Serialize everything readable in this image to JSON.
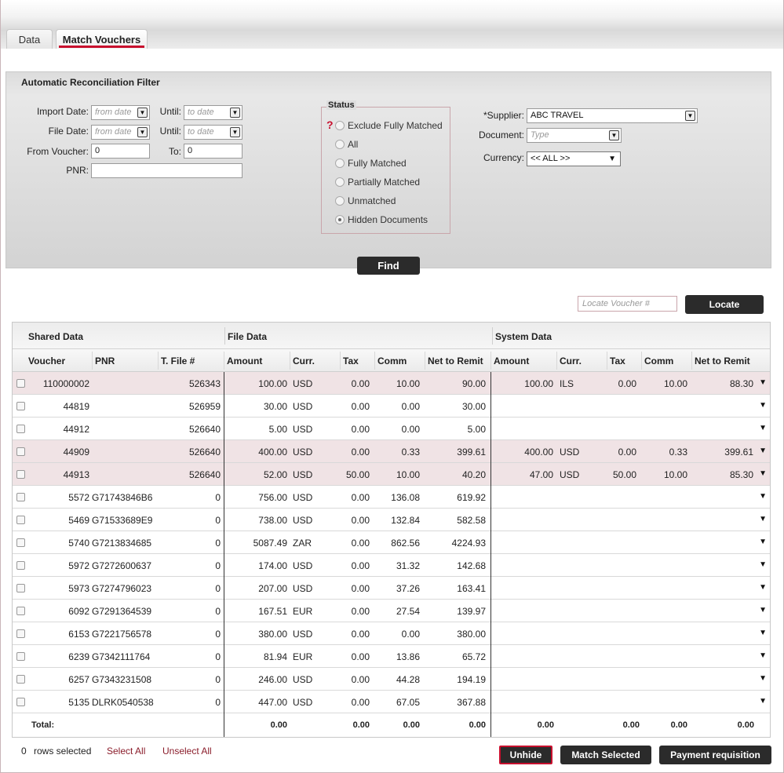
{
  "tabs": {
    "data": "Data",
    "match_vouchers": "Match Vouchers"
  },
  "filter": {
    "title": "Automatic Reconciliation Filter",
    "import_date_label": "Import Date:",
    "import_date_placeholder": "from date",
    "until_label": "Until:",
    "until_placeholder": "to date",
    "file_date_label": "File Date:",
    "file_date_placeholder": "from date",
    "from_voucher_label": "From Voucher:",
    "from_voucher_value": "0",
    "to_label": "To:",
    "to_value": "0",
    "pnr_label": "PNR:",
    "pnr_value": "",
    "status_legend": "Status",
    "status_options": [
      "Exclude Fully Matched",
      "All",
      "Fully Matched",
      "Partially Matched",
      "Unmatched",
      "Hidden Documents"
    ],
    "status_selected": "Hidden Documents",
    "supplier_label": "*Supplier:",
    "supplier_value": "ABC TRAVEL",
    "document_label": "Document:",
    "document_placeholder": "Type",
    "currency_label": "Currency:",
    "currency_value": "<< ALL >>",
    "find_label": "Find"
  },
  "locate": {
    "placeholder": "Locate Voucher #",
    "button": "Locate"
  },
  "grid": {
    "group_headers": {
      "shared": "Shared Data",
      "file": "File Data",
      "system": "System Data"
    },
    "columns": {
      "voucher": "Voucher",
      "pnr": "PNR",
      "tfile": "T. File #",
      "f_amount": "Amount",
      "f_curr": "Curr.",
      "f_tax": "Tax",
      "f_comm": "Comm",
      "f_net": "Net to Remit",
      "s_amount": "Amount",
      "s_curr": "Curr.",
      "s_tax": "Tax",
      "s_comm": "Comm",
      "s_net": "Net to Remit"
    },
    "rows": [
      {
        "voucher": "110000002",
        "pnr": "",
        "tfile": "526343",
        "f_amount": "100.00",
        "f_curr": "USD",
        "f_tax": "0.00",
        "f_comm": "10.00",
        "f_net": "90.00",
        "s_amount": "100.00",
        "s_curr": "ILS",
        "s_tax": "0.00",
        "s_comm": "10.00",
        "s_net": "88.30",
        "matched": true
      },
      {
        "voucher": "44819",
        "pnr": "",
        "tfile": "526959",
        "f_amount": "30.00",
        "f_curr": "USD",
        "f_tax": "0.00",
        "f_comm": "0.00",
        "f_net": "30.00",
        "s_amount": "",
        "s_curr": "",
        "s_tax": "",
        "s_comm": "",
        "s_net": "",
        "matched": false
      },
      {
        "voucher": "44912",
        "pnr": "",
        "tfile": "526640",
        "f_amount": "5.00",
        "f_curr": "USD",
        "f_tax": "0.00",
        "f_comm": "0.00",
        "f_net": "5.00",
        "s_amount": "",
        "s_curr": "",
        "s_tax": "",
        "s_comm": "",
        "s_net": "",
        "matched": false
      },
      {
        "voucher": "44909",
        "pnr": "",
        "tfile": "526640",
        "f_amount": "400.00",
        "f_curr": "USD",
        "f_tax": "0.00",
        "f_comm": "0.33",
        "f_net": "399.61",
        "s_amount": "400.00",
        "s_curr": "USD",
        "s_tax": "0.00",
        "s_comm": "0.33",
        "s_net": "399.61",
        "matched": true
      },
      {
        "voucher": "44913",
        "pnr": "",
        "tfile": "526640",
        "f_amount": "52.00",
        "f_curr": "USD",
        "f_tax": "50.00",
        "f_comm": "10.00",
        "f_net": "40.20",
        "s_amount": "47.00",
        "s_curr": "USD",
        "s_tax": "50.00",
        "s_comm": "10.00",
        "s_net": "85.30",
        "matched": true
      },
      {
        "voucher": "5572",
        "pnr": "G71743846B6",
        "tfile": "0",
        "f_amount": "756.00",
        "f_curr": "USD",
        "f_tax": "0.00",
        "f_comm": "136.08",
        "f_net": "619.92",
        "s_amount": "",
        "s_curr": "",
        "s_tax": "",
        "s_comm": "",
        "s_net": "",
        "matched": false
      },
      {
        "voucher": "5469",
        "pnr": "G71533689E9",
        "tfile": "0",
        "f_amount": "738.00",
        "f_curr": "USD",
        "f_tax": "0.00",
        "f_comm": "132.84",
        "f_net": "582.58",
        "s_amount": "",
        "s_curr": "",
        "s_tax": "",
        "s_comm": "",
        "s_net": "",
        "matched": false
      },
      {
        "voucher": "5740",
        "pnr": "G7213834685",
        "tfile": "0",
        "f_amount": "5087.49",
        "f_curr": "ZAR",
        "f_tax": "0.00",
        "f_comm": "862.56",
        "f_net": "4224.93",
        "s_amount": "",
        "s_curr": "",
        "s_tax": "",
        "s_comm": "",
        "s_net": "",
        "matched": false
      },
      {
        "voucher": "5972",
        "pnr": "G7272600637",
        "tfile": "0",
        "f_amount": "174.00",
        "f_curr": "USD",
        "f_tax": "0.00",
        "f_comm": "31.32",
        "f_net": "142.68",
        "s_amount": "",
        "s_curr": "",
        "s_tax": "",
        "s_comm": "",
        "s_net": "",
        "matched": false
      },
      {
        "voucher": "5973",
        "pnr": "G7274796023",
        "tfile": "0",
        "f_amount": "207.00",
        "f_curr": "USD",
        "f_tax": "0.00",
        "f_comm": "37.26",
        "f_net": "163.41",
        "s_amount": "",
        "s_curr": "",
        "s_tax": "",
        "s_comm": "",
        "s_net": "",
        "matched": false
      },
      {
        "voucher": "6092",
        "pnr": "G7291364539",
        "tfile": "0",
        "f_amount": "167.51",
        "f_curr": "EUR",
        "f_tax": "0.00",
        "f_comm": "27.54",
        "f_net": "139.97",
        "s_amount": "",
        "s_curr": "",
        "s_tax": "",
        "s_comm": "",
        "s_net": "",
        "matched": false
      },
      {
        "voucher": "6153",
        "pnr": "G7221756578",
        "tfile": "0",
        "f_amount": "380.00",
        "f_curr": "USD",
        "f_tax": "0.00",
        "f_comm": "0.00",
        "f_net": "380.00",
        "s_amount": "",
        "s_curr": "",
        "s_tax": "",
        "s_comm": "",
        "s_net": "",
        "matched": false
      },
      {
        "voucher": "6239",
        "pnr": "G7342111764",
        "tfile": "0",
        "f_amount": "81.94",
        "f_curr": "EUR",
        "f_tax": "0.00",
        "f_comm": "13.86",
        "f_net": "65.72",
        "s_amount": "",
        "s_curr": "",
        "s_tax": "",
        "s_comm": "",
        "s_net": "",
        "matched": false
      },
      {
        "voucher": "6257",
        "pnr": "G7343231508",
        "tfile": "0",
        "f_amount": "246.00",
        "f_curr": "USD",
        "f_tax": "0.00",
        "f_comm": "44.28",
        "f_net": "194.19",
        "s_amount": "",
        "s_curr": "",
        "s_tax": "",
        "s_comm": "",
        "s_net": "",
        "matched": false
      },
      {
        "voucher": "5135",
        "pnr": "DLRK0540538",
        "tfile": "0",
        "f_amount": "447.00",
        "f_curr": "USD",
        "f_tax": "0.00",
        "f_comm": "67.05",
        "f_net": "367.88",
        "s_amount": "",
        "s_curr": "",
        "s_tax": "",
        "s_comm": "",
        "s_net": "",
        "matched": false
      }
    ],
    "totals": {
      "label": "Total:",
      "f_amount": "0.00",
      "f_tax": "0.00",
      "f_comm": "0.00",
      "f_net": "0.00",
      "s_amount": "0.00",
      "s_tax": "0.00",
      "s_comm": "0.00",
      "s_net": "0.00"
    },
    "matched_row_color": "#f0e3e5"
  },
  "footer": {
    "rows_selected_count": "0",
    "rows_selected_label": "rows selected",
    "select_all": "Select All",
    "unselect_all": "Unselect All",
    "unhide": "Unhide",
    "match_selected": "Match Selected",
    "payment_requisition": "Payment requisition"
  },
  "colors": {
    "accent": "#c8102e",
    "button_dark": "#2b2b2b"
  }
}
